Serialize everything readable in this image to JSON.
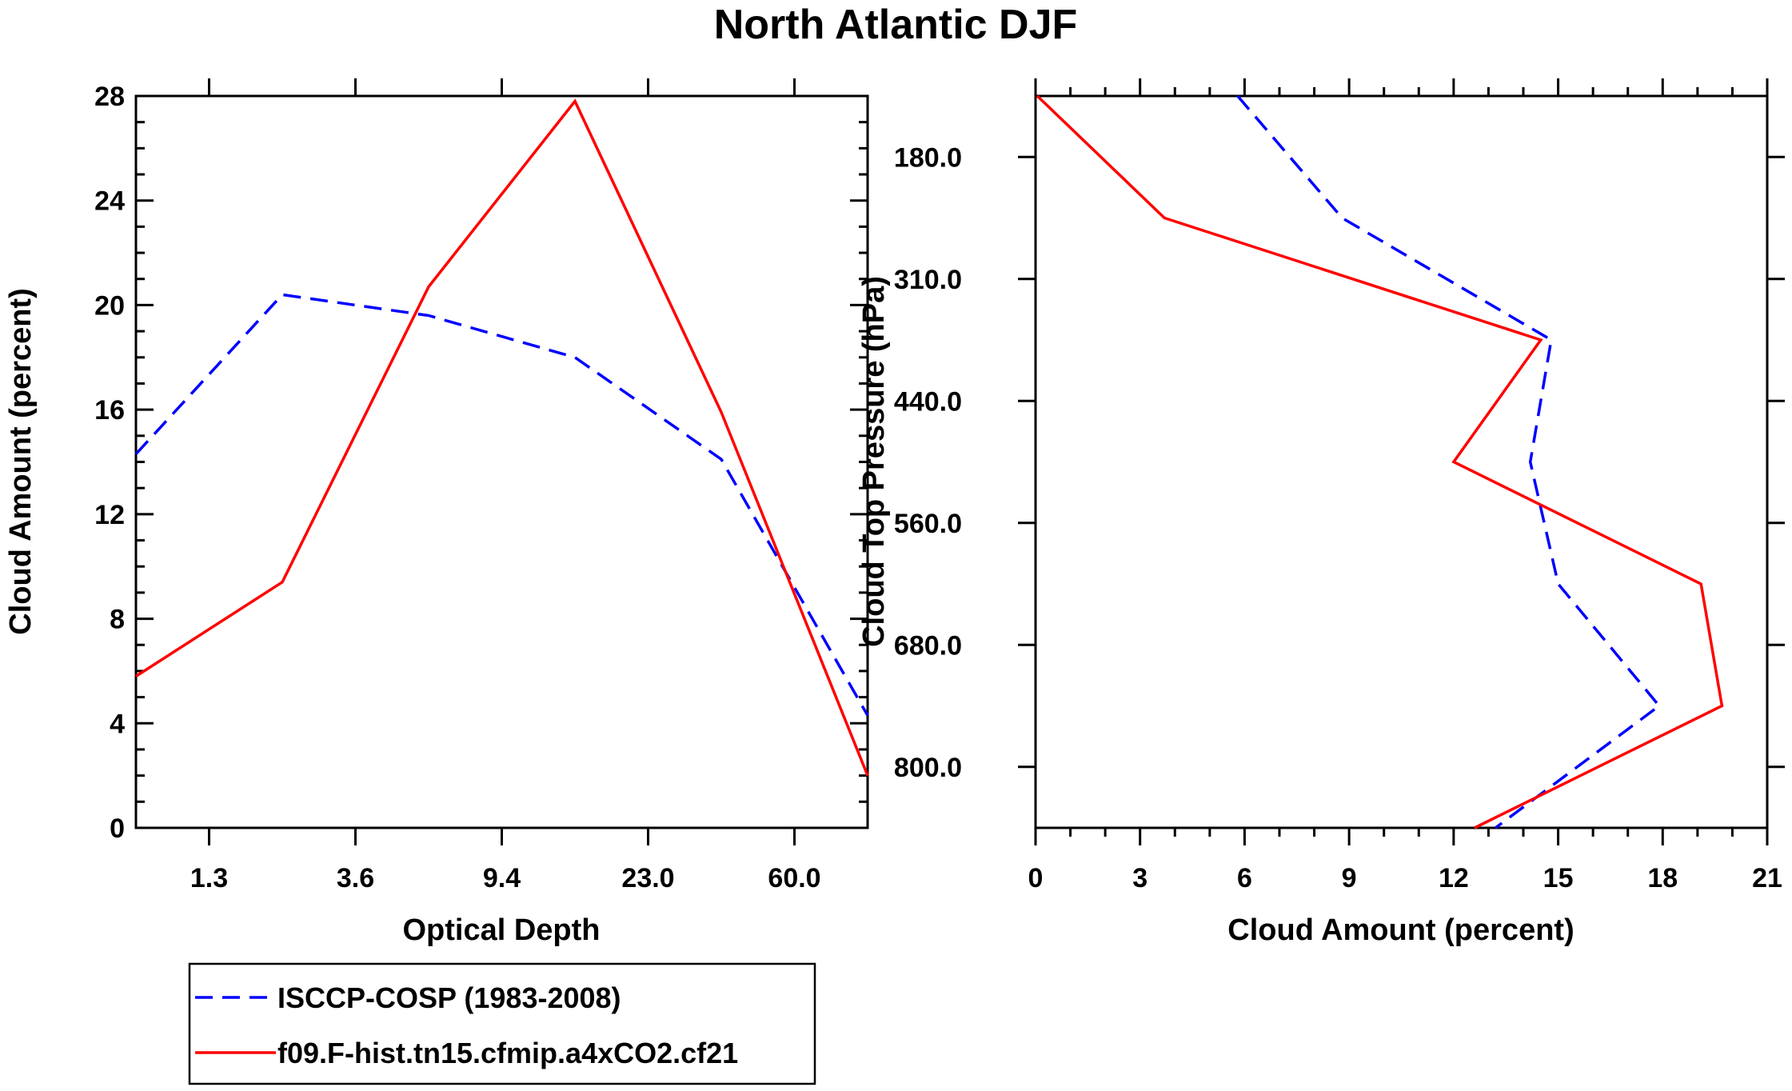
{
  "title": "North Atlantic DJF",
  "colors": {
    "obs": "#0000ff",
    "model": "#ff0000",
    "axis": "#000000"
  },
  "chart_data": [
    {
      "type": "line",
      "title": "North Atlantic DJF",
      "xlabel": "Optical Depth",
      "ylabel": "Cloud Amount (percent)",
      "xlim": [
        0,
        10
      ],
      "ylim": [
        0,
        28
      ],
      "y_ticks": [
        "0",
        "4",
        "8",
        "12",
        "16",
        "20",
        "24",
        "28"
      ],
      "x_tick_labels": [
        "1.3",
        "3.6",
        "9.4",
        "23.0",
        "60.0"
      ],
      "x_tick_positions": [
        1,
        3,
        5,
        7,
        9
      ],
      "x": [
        0,
        2,
        4,
        6,
        8,
        10
      ],
      "series": [
        {
          "name": "ISCCP-COSP (1983-2008)",
          "style": "dashed",
          "values": [
            14.3,
            20.4,
            19.6,
            18.0,
            14.1,
            4.3
          ]
        },
        {
          "name": "f09.F-hist.tn15.cfmip.a4xCO2.cf21",
          "style": "solid",
          "values": [
            5.8,
            9.4,
            20.7,
            27.8,
            15.9,
            2.0
          ]
        }
      ]
    },
    {
      "type": "line",
      "orientation": "horizontal",
      "xlabel": "Cloud Amount (percent)",
      "ylabel": "Cloud Top Pressure (hPa)",
      "xlim": [
        0,
        21
      ],
      "ylim": [
        120,
        840
      ],
      "y_inverted": true,
      "x_ticks": [
        "0",
        "3",
        "6",
        "9",
        "12",
        "15",
        "18",
        "21"
      ],
      "y_tick_labels": [
        "180.0",
        "310.0",
        "440.0",
        "560.0",
        "680.0",
        "800.0"
      ],
      "y_tick_positions": [
        180,
        300,
        420,
        540,
        660,
        780
      ],
      "series": [
        {
          "name": "ISCCP-COSP (1983-2008)",
          "style": "dashed",
          "pressure": [
            120,
            240,
            360,
            480,
            600,
            720,
            840
          ],
          "values": [
            5.8,
            8.8,
            14.8,
            14.2,
            15.0,
            17.9,
            13.2
          ]
        },
        {
          "name": "f09.F-hist.tn15.cfmip.a4xCO2.cf21",
          "style": "solid",
          "pressure": [
            120,
            240,
            360,
            480,
            600,
            720,
            840
          ],
          "values": [
            0.05,
            3.7,
            14.5,
            12.0,
            19.1,
            19.7,
            12.6
          ]
        }
      ]
    }
  ],
  "legend": [
    {
      "label": "ISCCP-COSP (1983-2008)",
      "style": "dashed"
    },
    {
      "label": "f09.F-hist.tn15.cfmip.a4xCO2.cf21",
      "style": "solid"
    }
  ]
}
